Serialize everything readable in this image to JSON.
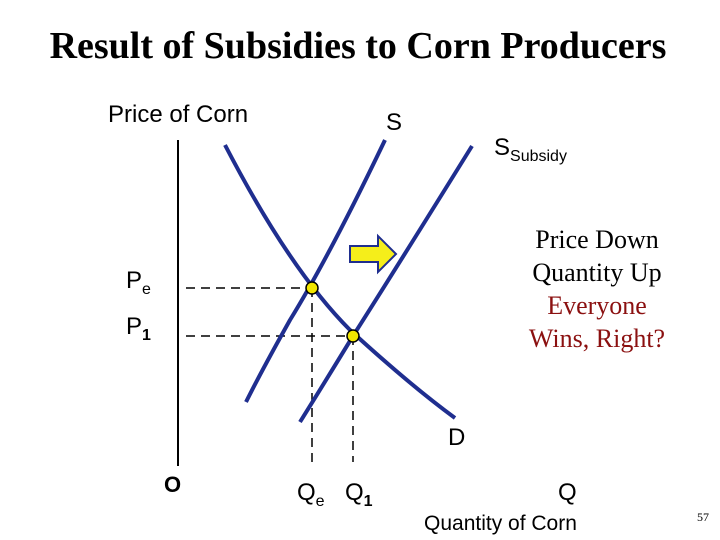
{
  "header": {
    "title": "Result of Subsidies to Corn Producers"
  },
  "axes": {
    "y_label": "Price of Corn",
    "x_label": "Quantity of Corn",
    "x_symbol": "Q",
    "origin": "O"
  },
  "curves": {
    "supply": "S",
    "subsidy_supply": {
      "symbol": "S",
      "subscript": "Subsidy"
    },
    "demand": "D"
  },
  "prices": [
    {
      "symbol": "P",
      "subscript": "e"
    },
    {
      "symbol": "P",
      "subscript": "1"
    }
  ],
  "quantities": [
    {
      "symbol": "Q",
      "subscript": "e"
    },
    {
      "symbol": "Q",
      "subscript": "1"
    }
  ],
  "notes": [
    "Price Down",
    "Quantity Up",
    "Everyone",
    "Wins, Right?"
  ],
  "footer": {
    "page": "57"
  }
}
